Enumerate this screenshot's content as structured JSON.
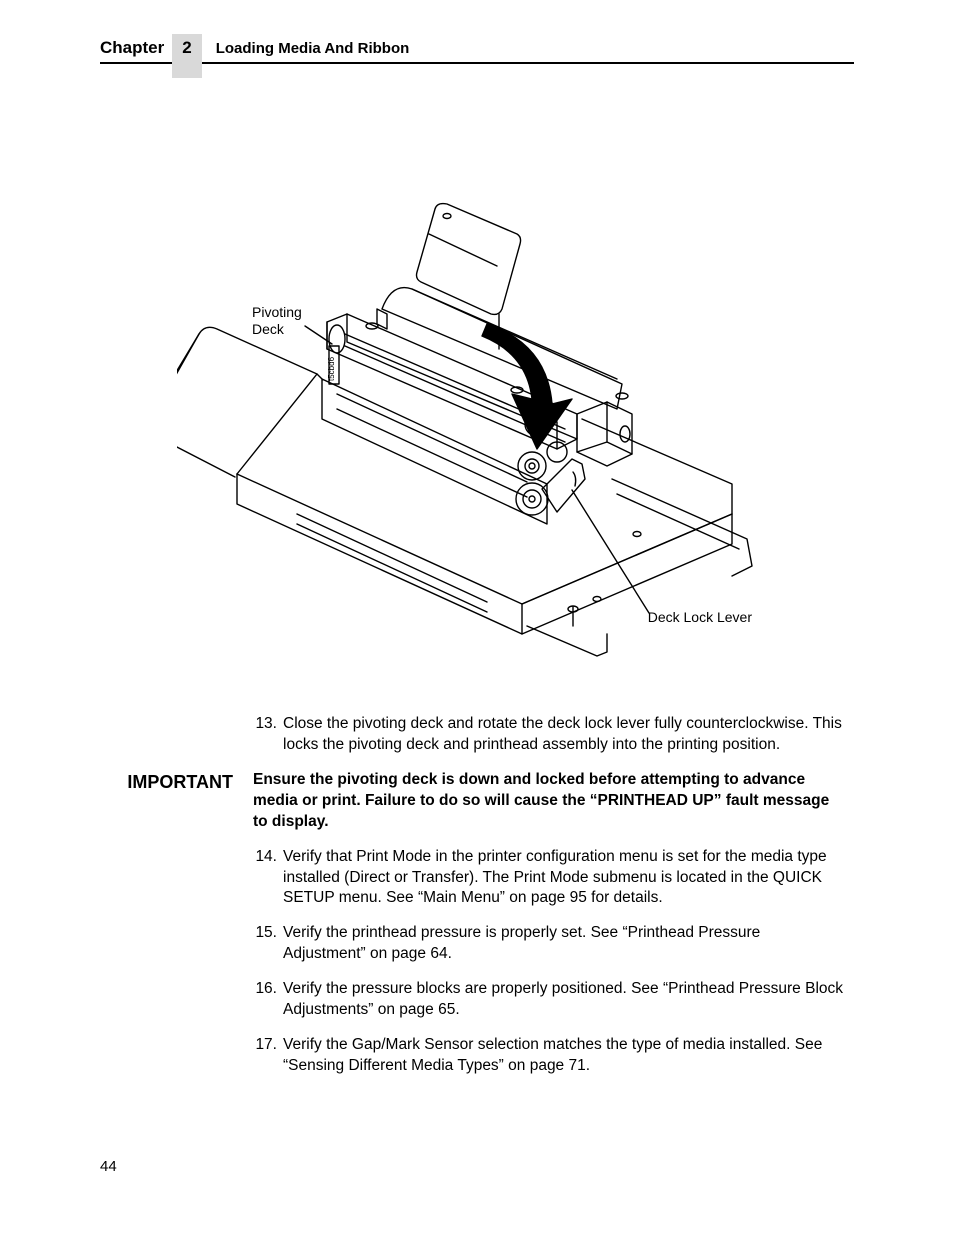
{
  "header": {
    "chapter_label": "Chapter",
    "chapter_number": "2",
    "chapter_title": "Loading Media And Ribbon"
  },
  "figure": {
    "callouts": {
      "pivoting_deck": "Pivoting\nDeck",
      "deck_lock_lever": "Deck Lock Lever"
    },
    "vertical_tag": "t5cbd6"
  },
  "steps": [
    {
      "num": "13.",
      "text": "Close the pivoting deck and rotate the deck lock lever fully counterclockwise. This locks the pivoting deck and printhead assembly into the printing position."
    }
  ],
  "important": {
    "label": "IMPORTANT",
    "text": "Ensure the pivoting deck is down and locked before attempting to advance media or print. Failure to do so will cause the “PRINTHEAD UP” fault message to display."
  },
  "steps2": [
    {
      "num": "14.",
      "text": "Verify that Print Mode in the printer configuration menu is set for the media type installed (Direct or Transfer). The Print Mode submenu is located in the QUICK SETUP menu. See “Main Menu” on page 95 for details."
    },
    {
      "num": "15.",
      "text": "Verify the printhead pressure is properly set. See “Printhead Pressure Adjustment” on page 64."
    },
    {
      "num": "16.",
      "text": "Verify the pressure blocks are properly positioned. See “Printhead Pressure Block Adjustments” on page 65."
    },
    {
      "num": "17.",
      "text": "Verify the Gap/Mark Sensor selection matches the type of media installed. See “Sensing Different Media Types” on page 71."
    }
  ],
  "page_number": "44"
}
